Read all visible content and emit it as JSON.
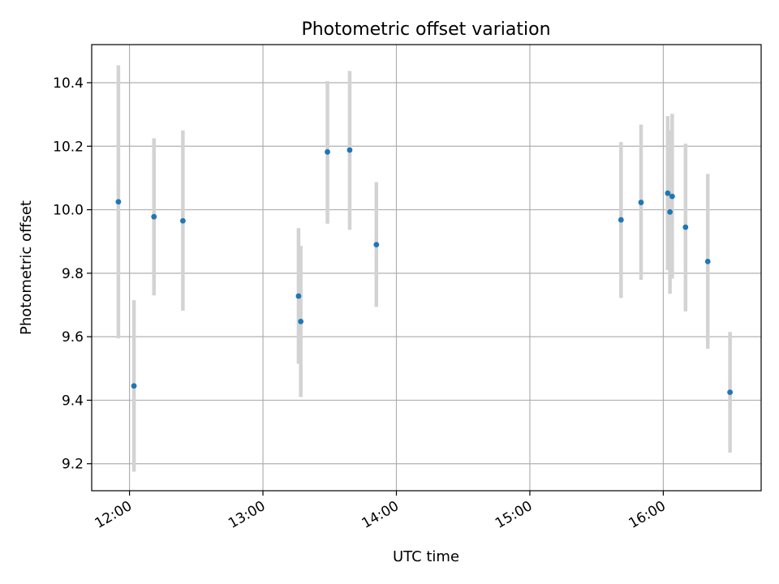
{
  "chart_data": {
    "type": "scatter",
    "title": "Photometric offset variation",
    "xlabel": "UTC time",
    "ylabel": "Photometric offset",
    "x_ticks": [
      "12:00",
      "13:00",
      "14:00",
      "15:00",
      "16:00"
    ],
    "x_tick_values": [
      "12:00",
      "13:00",
      "14:00",
      "15:00",
      "16:00"
    ],
    "xlim": [
      "11:43",
      "16:44"
    ],
    "y_ticks": [
      9.2,
      9.4,
      9.6,
      9.8,
      10.0,
      10.2,
      10.4
    ],
    "ylim": [
      9.115,
      10.52
    ],
    "grid": true,
    "colors": {
      "point": "#1f77b4",
      "errorbar": "#d3d3d3",
      "grid": "#b0b0b0"
    },
    "series": [
      {
        "points": [
          {
            "x": "11:55",
            "y": 10.025,
            "err_low": 9.595,
            "err_high": 10.455
          },
          {
            "x": "12:02",
            "y": 9.445,
            "err_low": 9.175,
            "err_high": 9.715
          },
          {
            "x": "12:11",
            "y": 9.978,
            "err_low": 9.73,
            "err_high": 10.225
          },
          {
            "x": "12:24",
            "y": 9.965,
            "err_low": 9.682,
            "err_high": 10.25
          },
          {
            "x": "13:16",
            "y": 9.728,
            "err_low": 9.515,
            "err_high": 9.942
          },
          {
            "x": "13:17",
            "y": 9.648,
            "err_low": 9.41,
            "err_high": 9.886
          },
          {
            "x": "13:29",
            "y": 10.182,
            "err_low": 9.956,
            "err_high": 10.405
          },
          {
            "x": "13:39",
            "y": 10.188,
            "err_low": 9.937,
            "err_high": 10.437
          },
          {
            "x": "13:51",
            "y": 9.89,
            "err_low": 9.694,
            "err_high": 10.087
          },
          {
            "x": "15:41",
            "y": 9.968,
            "err_low": 9.722,
            "err_high": 10.213
          },
          {
            "x": "15:50",
            "y": 10.023,
            "err_low": 9.779,
            "err_high": 10.268
          },
          {
            "x": "16:02",
            "y": 10.052,
            "err_low": 9.81,
            "err_high": 10.295
          },
          {
            "x": "16:03",
            "y": 9.993,
            "err_low": 9.735,
            "err_high": 10.25
          },
          {
            "x": "16:04",
            "y": 10.042,
            "err_low": 9.783,
            "err_high": 10.302
          },
          {
            "x": "16:10",
            "y": 9.945,
            "err_low": 9.68,
            "err_high": 10.208
          },
          {
            "x": "16:20",
            "y": 9.837,
            "err_low": 9.562,
            "err_high": 10.113
          },
          {
            "x": "16:30",
            "y": 9.425,
            "err_low": 9.235,
            "err_high": 9.615
          }
        ]
      }
    ]
  }
}
